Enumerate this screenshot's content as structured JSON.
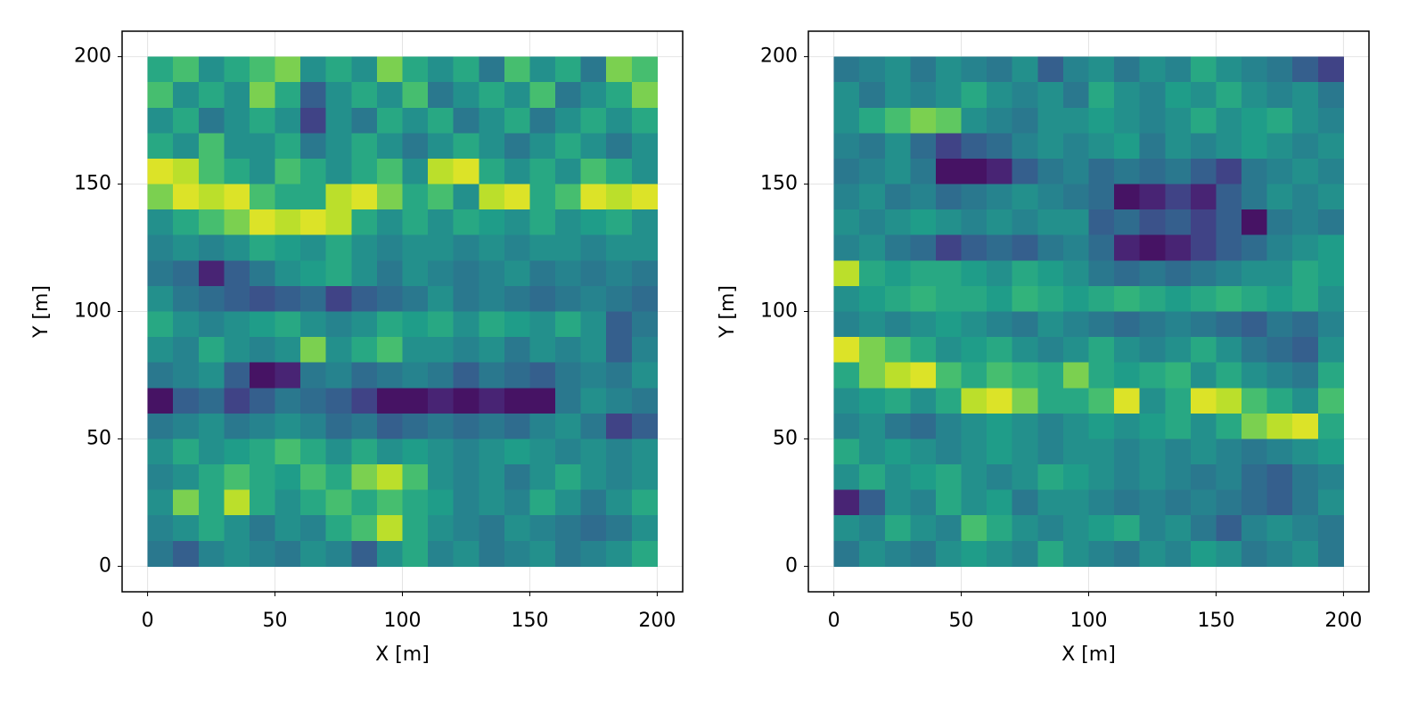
{
  "chart_data": [
    {
      "type": "heatmap",
      "xlabel": "X [m]",
      "ylabel": "Y [m]",
      "colormap": "viridis",
      "grid": true,
      "xlim": [
        -10,
        210
      ],
      "ylim": [
        -10,
        210
      ],
      "xticks": [
        0,
        50,
        100,
        150,
        200
      ],
      "yticks": [
        0,
        50,
        100,
        150,
        200
      ],
      "x": [
        0,
        10,
        20,
        30,
        40,
        50,
        60,
        70,
        80,
        90,
        100,
        110,
        120,
        130,
        140,
        150,
        160,
        170,
        180,
        190,
        200
      ],
      "y": [
        200,
        190,
        180,
        170,
        160,
        150,
        140,
        130,
        120,
        110,
        100,
        90,
        80,
        70,
        60,
        50,
        40,
        30,
        20,
        10,
        0
      ],
      "z": [
        [
          0.6,
          0.7,
          0.5,
          0.6,
          0.7,
          0.8,
          0.5,
          0.6,
          0.5,
          0.8,
          0.6,
          0.5,
          0.6,
          0.4,
          0.7,
          0.5,
          0.6,
          0.4,
          0.8,
          0.7
        ],
        [
          0.7,
          0.5,
          0.6,
          0.5,
          0.8,
          0.6,
          0.3,
          0.5,
          0.6,
          0.5,
          0.7,
          0.4,
          0.5,
          0.6,
          0.5,
          0.7,
          0.4,
          0.5,
          0.6,
          0.8
        ],
        [
          0.5,
          0.6,
          0.4,
          0.5,
          0.6,
          0.5,
          0.2,
          0.5,
          0.4,
          0.6,
          0.5,
          0.6,
          0.4,
          0.5,
          0.6,
          0.4,
          0.5,
          0.6,
          0.5,
          0.6
        ],
        [
          0.6,
          0.5,
          0.7,
          0.5,
          0.5,
          0.6,
          0.4,
          0.5,
          0.6,
          0.5,
          0.4,
          0.5,
          0.6,
          0.5,
          0.4,
          0.5,
          0.6,
          0.5,
          0.4,
          0.5
        ],
        [
          0.95,
          0.9,
          0.7,
          0.6,
          0.5,
          0.7,
          0.6,
          0.5,
          0.6,
          0.7,
          0.5,
          0.9,
          0.95,
          0.6,
          0.5,
          0.6,
          0.5,
          0.7,
          0.6,
          0.5
        ],
        [
          0.8,
          0.95,
          0.9,
          0.95,
          0.7,
          0.6,
          0.6,
          0.9,
          0.95,
          0.8,
          0.6,
          0.7,
          0.5,
          0.9,
          0.95,
          0.6,
          0.7,
          0.95,
          0.9,
          0.95
        ],
        [
          0.5,
          0.6,
          0.7,
          0.8,
          0.95,
          0.9,
          0.95,
          0.9,
          0.6,
          0.5,
          0.6,
          0.5,
          0.6,
          0.55,
          0.5,
          0.6,
          0.5,
          0.55,
          0.6,
          0.5
        ],
        [
          0.45,
          0.5,
          0.45,
          0.5,
          0.6,
          0.55,
          0.5,
          0.6,
          0.5,
          0.45,
          0.5,
          0.5,
          0.45,
          0.5,
          0.45,
          0.5,
          0.5,
          0.45,
          0.5,
          0.5
        ],
        [
          0.4,
          0.35,
          0.1,
          0.3,
          0.4,
          0.5,
          0.55,
          0.6,
          0.5,
          0.4,
          0.5,
          0.45,
          0.4,
          0.45,
          0.5,
          0.4,
          0.45,
          0.4,
          0.45,
          0.4
        ],
        [
          0.5,
          0.4,
          0.35,
          0.3,
          0.25,
          0.3,
          0.35,
          0.2,
          0.3,
          0.35,
          0.4,
          0.5,
          0.4,
          0.45,
          0.4,
          0.35,
          0.4,
          0.45,
          0.4,
          0.35
        ],
        [
          0.6,
          0.5,
          0.45,
          0.5,
          0.55,
          0.6,
          0.5,
          0.45,
          0.5,
          0.6,
          0.55,
          0.6,
          0.5,
          0.6,
          0.55,
          0.5,
          0.6,
          0.5,
          0.3,
          0.4
        ],
        [
          0.5,
          0.45,
          0.6,
          0.5,
          0.45,
          0.5,
          0.8,
          0.5,
          0.6,
          0.7,
          0.5,
          0.5,
          0.45,
          0.5,
          0.4,
          0.5,
          0.45,
          0.5,
          0.3,
          0.45
        ],
        [
          0.4,
          0.45,
          0.5,
          0.3,
          0.05,
          0.1,
          0.4,
          0.45,
          0.35,
          0.4,
          0.45,
          0.4,
          0.3,
          0.4,
          0.35,
          0.3,
          0.4,
          0.45,
          0.4,
          0.5
        ],
        [
          0.05,
          0.3,
          0.35,
          0.2,
          0.3,
          0.4,
          0.35,
          0.3,
          0.2,
          0.05,
          0.05,
          0.1,
          0.05,
          0.1,
          0.05,
          0.05,
          0.4,
          0.5,
          0.45,
          0.4
        ],
        [
          0.4,
          0.45,
          0.5,
          0.4,
          0.45,
          0.5,
          0.45,
          0.35,
          0.4,
          0.3,
          0.35,
          0.4,
          0.35,
          0.4,
          0.35,
          0.45,
          0.5,
          0.4,
          0.2,
          0.3
        ],
        [
          0.5,
          0.6,
          0.5,
          0.55,
          0.6,
          0.7,
          0.6,
          0.5,
          0.6,
          0.5,
          0.55,
          0.5,
          0.45,
          0.5,
          0.55,
          0.5,
          0.45,
          0.5,
          0.45,
          0.5
        ],
        [
          0.45,
          0.5,
          0.6,
          0.7,
          0.6,
          0.55,
          0.7,
          0.6,
          0.8,
          0.9,
          0.7,
          0.5,
          0.45,
          0.5,
          0.4,
          0.5,
          0.6,
          0.5,
          0.45,
          0.5
        ],
        [
          0.5,
          0.8,
          0.6,
          0.9,
          0.6,
          0.5,
          0.6,
          0.7,
          0.6,
          0.7,
          0.6,
          0.55,
          0.45,
          0.5,
          0.45,
          0.6,
          0.5,
          0.4,
          0.5,
          0.6
        ],
        [
          0.45,
          0.5,
          0.6,
          0.5,
          0.4,
          0.5,
          0.45,
          0.6,
          0.7,
          0.9,
          0.6,
          0.5,
          0.45,
          0.4,
          0.5,
          0.45,
          0.4,
          0.35,
          0.4,
          0.5
        ],
        [
          0.4,
          0.3,
          0.45,
          0.5,
          0.45,
          0.4,
          0.5,
          0.45,
          0.3,
          0.5,
          0.6,
          0.45,
          0.5,
          0.4,
          0.45,
          0.5,
          0.4,
          0.45,
          0.5,
          0.6
        ]
      ]
    },
    {
      "type": "heatmap",
      "xlabel": "X [m]",
      "ylabel": "Y [m]",
      "colormap": "viridis",
      "grid": true,
      "xlim": [
        -10,
        210
      ],
      "ylim": [
        -10,
        210
      ],
      "xticks": [
        0,
        50,
        100,
        150,
        200
      ],
      "yticks": [
        0,
        50,
        100,
        150,
        200
      ],
      "x": [
        0,
        10,
        20,
        30,
        40,
        50,
        60,
        70,
        80,
        90,
        100,
        110,
        120,
        130,
        140,
        150,
        160,
        170,
        180,
        190,
        200
      ],
      "y": [
        200,
        190,
        180,
        170,
        160,
        150,
        140,
        130,
        120,
        110,
        100,
        90,
        80,
        70,
        60,
        50,
        40,
        30,
        20,
        10,
        0
      ],
      "z": [
        [
          0.4,
          0.45,
          0.5,
          0.4,
          0.5,
          0.45,
          0.4,
          0.5,
          0.3,
          0.45,
          0.5,
          0.4,
          0.5,
          0.45,
          0.6,
          0.5,
          0.45,
          0.4,
          0.3,
          0.2
        ],
        [
          0.5,
          0.4,
          0.5,
          0.45,
          0.5,
          0.6,
          0.5,
          0.45,
          0.5,
          0.4,
          0.6,
          0.5,
          0.45,
          0.55,
          0.5,
          0.6,
          0.5,
          0.45,
          0.5,
          0.4
        ],
        [
          0.5,
          0.6,
          0.7,
          0.8,
          0.75,
          0.5,
          0.45,
          0.4,
          0.5,
          0.5,
          0.55,
          0.5,
          0.45,
          0.5,
          0.6,
          0.5,
          0.55,
          0.6,
          0.5,
          0.45
        ],
        [
          0.45,
          0.4,
          0.5,
          0.35,
          0.2,
          0.3,
          0.35,
          0.45,
          0.5,
          0.45,
          0.5,
          0.55,
          0.4,
          0.5,
          0.45,
          0.5,
          0.55,
          0.5,
          0.45,
          0.5
        ],
        [
          0.4,
          0.45,
          0.5,
          0.4,
          0.05,
          0.05,
          0.1,
          0.3,
          0.4,
          0.45,
          0.35,
          0.4,
          0.35,
          0.4,
          0.3,
          0.2,
          0.4,
          0.45,
          0.5,
          0.45
        ],
        [
          0.45,
          0.5,
          0.4,
          0.45,
          0.35,
          0.4,
          0.45,
          0.5,
          0.45,
          0.4,
          0.35,
          0.05,
          0.1,
          0.2,
          0.1,
          0.3,
          0.4,
          0.5,
          0.45,
          0.5
        ],
        [
          0.5,
          0.45,
          0.5,
          0.55,
          0.5,
          0.45,
          0.5,
          0.45,
          0.5,
          0.5,
          0.3,
          0.35,
          0.25,
          0.3,
          0.2,
          0.3,
          0.05,
          0.4,
          0.45,
          0.4
        ],
        [
          0.45,
          0.5,
          0.4,
          0.35,
          0.2,
          0.3,
          0.35,
          0.3,
          0.4,
          0.45,
          0.35,
          0.1,
          0.05,
          0.1,
          0.2,
          0.3,
          0.35,
          0.45,
          0.5,
          0.55
        ],
        [
          0.9,
          0.6,
          0.55,
          0.6,
          0.6,
          0.55,
          0.5,
          0.6,
          0.55,
          0.5,
          0.4,
          0.35,
          0.4,
          0.35,
          0.4,
          0.45,
          0.5,
          0.5,
          0.6,
          0.55
        ],
        [
          0.5,
          0.55,
          0.6,
          0.65,
          0.6,
          0.6,
          0.55,
          0.65,
          0.6,
          0.55,
          0.6,
          0.65,
          0.6,
          0.55,
          0.6,
          0.65,
          0.6,
          0.55,
          0.6,
          0.5
        ],
        [
          0.45,
          0.5,
          0.45,
          0.5,
          0.55,
          0.5,
          0.45,
          0.4,
          0.5,
          0.45,
          0.4,
          0.35,
          0.4,
          0.45,
          0.4,
          0.35,
          0.3,
          0.4,
          0.35,
          0.45
        ],
        [
          0.95,
          0.8,
          0.7,
          0.6,
          0.5,
          0.55,
          0.6,
          0.5,
          0.45,
          0.5,
          0.6,
          0.5,
          0.45,
          0.5,
          0.6,
          0.5,
          0.4,
          0.35,
          0.3,
          0.5
        ],
        [
          0.6,
          0.8,
          0.9,
          0.95,
          0.7,
          0.6,
          0.7,
          0.65,
          0.6,
          0.8,
          0.6,
          0.55,
          0.6,
          0.65,
          0.5,
          0.6,
          0.5,
          0.45,
          0.4,
          0.6
        ],
        [
          0.5,
          0.55,
          0.6,
          0.5,
          0.6,
          0.9,
          0.95,
          0.8,
          0.6,
          0.6,
          0.7,
          0.95,
          0.5,
          0.6,
          0.95,
          0.9,
          0.7,
          0.6,
          0.5,
          0.7
        ],
        [
          0.45,
          0.5,
          0.4,
          0.35,
          0.45,
          0.5,
          0.55,
          0.5,
          0.45,
          0.5,
          0.55,
          0.5,
          0.55,
          0.6,
          0.5,
          0.6,
          0.8,
          0.9,
          0.95,
          0.6
        ],
        [
          0.6,
          0.5,
          0.55,
          0.5,
          0.45,
          0.5,
          0.55,
          0.5,
          0.45,
          0.5,
          0.5,
          0.45,
          0.5,
          0.45,
          0.5,
          0.45,
          0.4,
          0.45,
          0.5,
          0.55
        ],
        [
          0.5,
          0.6,
          0.5,
          0.55,
          0.6,
          0.5,
          0.45,
          0.5,
          0.6,
          0.55,
          0.5,
          0.45,
          0.5,
          0.45,
          0.4,
          0.45,
          0.35,
          0.3,
          0.4,
          0.45
        ],
        [
          0.1,
          0.3,
          0.5,
          0.45,
          0.6,
          0.5,
          0.55,
          0.4,
          0.5,
          0.5,
          0.45,
          0.4,
          0.45,
          0.4,
          0.45,
          0.4,
          0.35,
          0.3,
          0.4,
          0.5
        ],
        [
          0.5,
          0.45,
          0.6,
          0.5,
          0.45,
          0.7,
          0.6,
          0.5,
          0.45,
          0.5,
          0.55,
          0.6,
          0.45,
          0.5,
          0.4,
          0.3,
          0.45,
          0.5,
          0.45,
          0.4
        ],
        [
          0.4,
          0.5,
          0.45,
          0.4,
          0.5,
          0.55,
          0.5,
          0.45,
          0.6,
          0.5,
          0.45,
          0.4,
          0.5,
          0.45,
          0.55,
          0.5,
          0.4,
          0.45,
          0.5,
          0.4
        ]
      ]
    }
  ]
}
